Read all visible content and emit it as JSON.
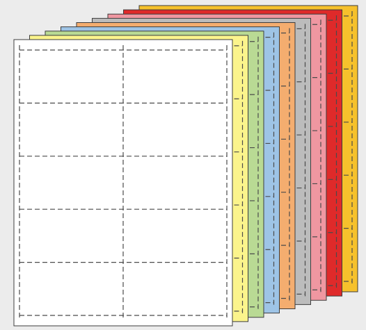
{
  "background_color": "#ececec",
  "outline_color": "#3c3c3c",
  "perforation_color": "#4a4a4a",
  "sheet_grid": {
    "columns": 2,
    "rows": 5
  },
  "sheets": [
    {
      "name": "yellow-orange",
      "color": "#f6c12c"
    },
    {
      "name": "red",
      "color": "#df2a2a"
    },
    {
      "name": "pink",
      "color": "#ef97a1"
    },
    {
      "name": "gray",
      "color": "#bcbcbc"
    },
    {
      "name": "orange",
      "color": "#f4ad6f"
    },
    {
      "name": "blue",
      "color": "#9ec4e6"
    },
    {
      "name": "green",
      "color": "#b9da94"
    },
    {
      "name": "yellow",
      "color": "#fbf48c"
    },
    {
      "name": "white",
      "color": "#ffffff"
    }
  ]
}
